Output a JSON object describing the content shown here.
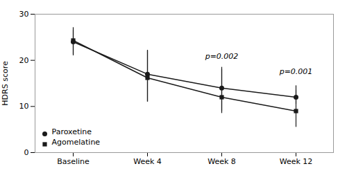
{
  "chart_data": {
    "type": "line",
    "categories": [
      "Baseline",
      "Week 4",
      "Week 8",
      "Week 12"
    ],
    "series": [
      {
        "name": "Paroxetine",
        "color": "#1a1a1a",
        "marker": "circle",
        "values": [
          24.0,
          17.0,
          14.0,
          12.0
        ],
        "yerr_lower": [
          3.0,
          6.0,
          5.5,
          1.5
        ],
        "yerr_upper": [
          2.5,
          5.0,
          4.5,
          1.5
        ]
      },
      {
        "name": "Agomelatine",
        "color": "#1a1a1a",
        "marker": "square",
        "values": [
          24.3,
          16.2,
          12.0,
          9.0
        ],
        "yerr_lower": [
          3.0,
          5.2,
          3.0,
          3.5
        ],
        "yerr_upper": [
          2.8,
          6.0,
          6.0,
          5.5
        ]
      }
    ],
    "ylabel": "HDRS score",
    "ylim": [
      0,
      30
    ],
    "yticks": [
      0,
      10,
      20,
      30
    ],
    "annotations": [
      {
        "x": "Week 8",
        "y": 20.0,
        "text": "p=0.002"
      },
      {
        "x": "Week 12",
        "y": 16.8,
        "text": "p=0.001"
      }
    ],
    "legend": "lower left"
  }
}
